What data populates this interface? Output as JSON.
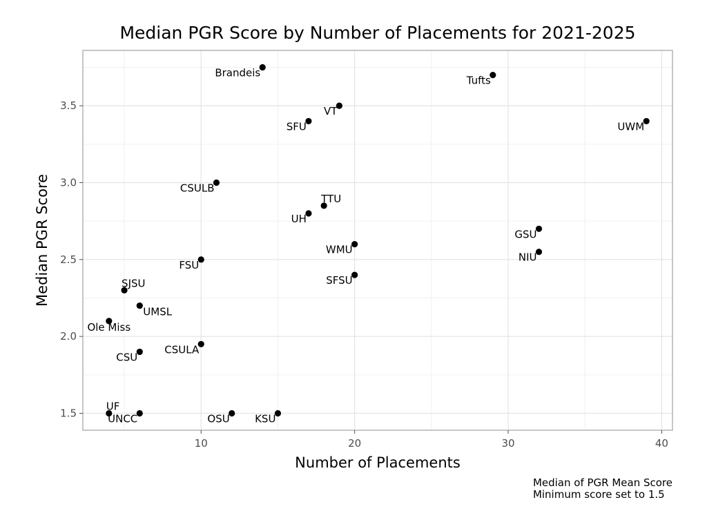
{
  "chart_data": {
    "type": "scatter",
    "title": "Median PGR Score by Number of Placements for 2021-2025",
    "xlabel": "Number of Placements",
    "ylabel": "Median PGR Score",
    "xlim": [
      2.3,
      40.7
    ],
    "ylim": [
      1.39,
      3.86
    ],
    "x_ticks": [
      10,
      20,
      30,
      40
    ],
    "y_ticks": [
      1.5,
      2.0,
      2.5,
      3.0,
      3.5
    ],
    "x_tick_labels": [
      "10",
      "20",
      "30",
      "40"
    ],
    "y_tick_labels": [
      "1.5",
      "2.0",
      "2.5",
      "3.0",
      "3.5"
    ],
    "grid": true,
    "point_color": "#000000",
    "grid_color": "#e3e3e3",
    "points": [
      {
        "label": "Brandeis",
        "x": 14,
        "y": 3.75,
        "anchor": "left"
      },
      {
        "label": "Tufts",
        "x": 29,
        "y": 3.7,
        "anchor": "left"
      },
      {
        "label": "VT",
        "x": 19,
        "y": 3.5,
        "anchor": "left"
      },
      {
        "label": "SFU",
        "x": 17,
        "y": 3.4,
        "anchor": "left"
      },
      {
        "label": "UWM",
        "x": 39,
        "y": 3.4,
        "anchor": "left"
      },
      {
        "label": "CSULB",
        "x": 11,
        "y": 3.0,
        "anchor": "left"
      },
      {
        "label": "TTU",
        "x": 18,
        "y": 2.85,
        "anchor": "above"
      },
      {
        "label": "UH",
        "x": 17,
        "y": 2.8,
        "anchor": "left"
      },
      {
        "label": "GSU",
        "x": 32,
        "y": 2.7,
        "anchor": "left"
      },
      {
        "label": "WMU",
        "x": 20,
        "y": 2.6,
        "anchor": "left"
      },
      {
        "label": "NIU",
        "x": 32,
        "y": 2.55,
        "anchor": "left"
      },
      {
        "label": "FSU",
        "x": 10,
        "y": 2.5,
        "anchor": "left"
      },
      {
        "label": "SFSU",
        "x": 20,
        "y": 2.4,
        "anchor": "left"
      },
      {
        "label": "SJSU",
        "x": 5,
        "y": 2.3,
        "anchor": "above"
      },
      {
        "label": "UMSL",
        "x": 6,
        "y": 2.2,
        "anchor": "right"
      },
      {
        "label": "Ole Miss",
        "x": 4,
        "y": 2.1,
        "anchor": "below"
      },
      {
        "label": "CSULA",
        "x": 10,
        "y": 1.95,
        "anchor": "left"
      },
      {
        "label": "CSU",
        "x": 6,
        "y": 1.9,
        "anchor": "left"
      },
      {
        "label": "UF",
        "x": 4,
        "y": 1.5,
        "anchor": "above"
      },
      {
        "label": "UNCC",
        "x": 6,
        "y": 1.5,
        "anchor": "left"
      },
      {
        "label": "OSU",
        "x": 12,
        "y": 1.5,
        "anchor": "left"
      },
      {
        "label": "KSU",
        "x": 15,
        "y": 1.5,
        "anchor": "left"
      }
    ],
    "caption": [
      "Median of PGR Mean Score",
      "Minimum score set to 1.5"
    ]
  }
}
